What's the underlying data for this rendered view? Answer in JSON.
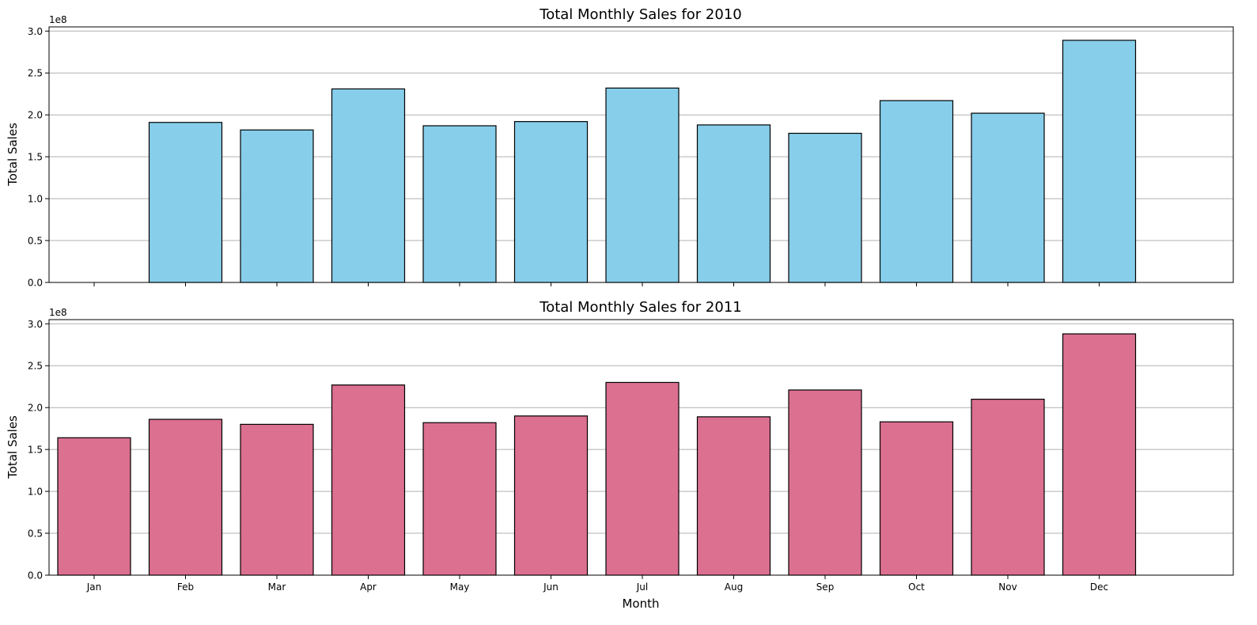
{
  "figure": {
    "x_label": "Month",
    "y_label": "Total Sales",
    "offset_text": "1e8"
  },
  "chart_data": [
    {
      "type": "bar",
      "title": "Total Monthly Sales for 2010",
      "xlabel": "",
      "ylabel": "Total Sales",
      "ylim": [
        0,
        3.05
      ],
      "y_unit_multiplier": 100000000,
      "y_ticks": [
        "0.0",
        "0.5",
        "1.0",
        "1.5",
        "2.0",
        "2.5",
        "3.0"
      ],
      "grid": "y",
      "bar_color": "#87CEEB",
      "edge_color": "#000000",
      "show_x_tick_labels": false,
      "categories": [
        "Jan",
        "Feb",
        "Mar",
        "Apr",
        "May",
        "Jun",
        "Jul",
        "Aug",
        "Sep",
        "Oct",
        "Nov",
        "Dec"
      ],
      "values": [
        null,
        1.91,
        1.82,
        2.31,
        1.87,
        1.92,
        2.32,
        1.88,
        1.78,
        2.17,
        2.02,
        2.89
      ]
    },
    {
      "type": "bar",
      "title": "Total Monthly Sales for 2011",
      "xlabel": "Month",
      "ylabel": "Total Sales",
      "ylim": [
        0,
        3.05
      ],
      "y_unit_multiplier": 100000000,
      "y_ticks": [
        "0.0",
        "0.5",
        "1.0",
        "1.5",
        "2.0",
        "2.5",
        "3.0"
      ],
      "grid": "y",
      "bar_color": "#DB7090",
      "edge_color": "#000000",
      "show_x_tick_labels": true,
      "categories": [
        "Jan",
        "Feb",
        "Mar",
        "Apr",
        "May",
        "Jun",
        "Jul",
        "Aug",
        "Sep",
        "Oct",
        "Nov",
        "Dec"
      ],
      "values": [
        1.64,
        1.86,
        1.8,
        2.27,
        1.82,
        1.9,
        2.3,
        1.89,
        2.21,
        1.83,
        2.1,
        2.88
      ]
    }
  ]
}
